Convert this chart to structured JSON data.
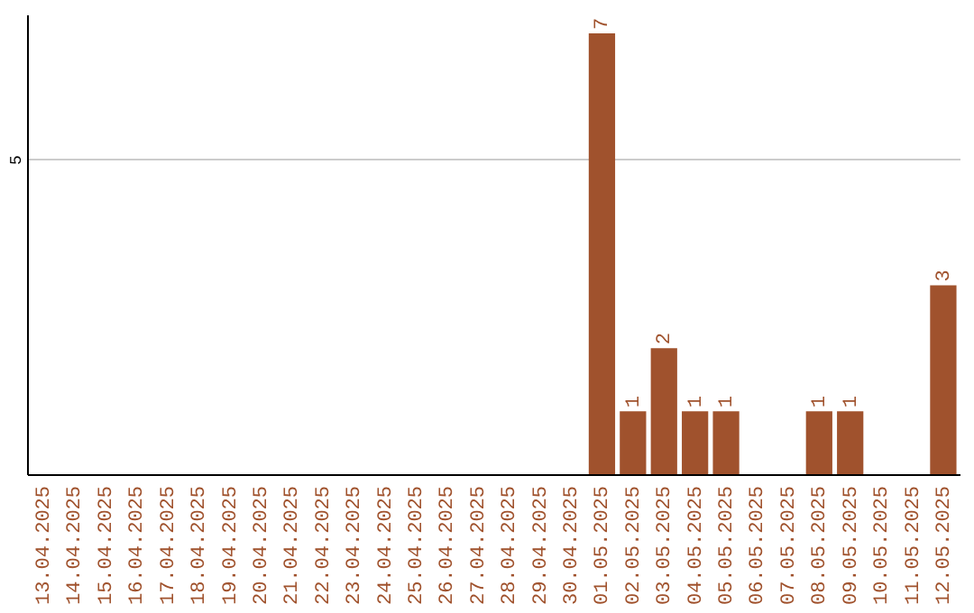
{
  "chart_data": {
    "type": "bar",
    "categories": [
      "13.04.2025",
      "14.04.2025",
      "15.04.2025",
      "16.04.2025",
      "17.04.2025",
      "18.04.2025",
      "19.04.2025",
      "20.04.2025",
      "21.04.2025",
      "22.04.2025",
      "23.04.2025",
      "24.04.2025",
      "25.04.2025",
      "26.04.2025",
      "27.04.2025",
      "28.04.2025",
      "29.04.2025",
      "30.04.2025",
      "01.05.2025",
      "02.05.2025",
      "03.05.2025",
      "04.05.2025",
      "05.05.2025",
      "06.05.2025",
      "07.05.2025",
      "08.05.2025",
      "09.05.2025",
      "10.05.2025",
      "11.05.2025",
      "12.05.2025"
    ],
    "values": [
      null,
      null,
      null,
      null,
      null,
      null,
      null,
      null,
      null,
      null,
      null,
      null,
      null,
      null,
      null,
      null,
      null,
      null,
      7,
      1,
      2,
      1,
      1,
      null,
      null,
      1,
      1,
      null,
      null,
      3
    ],
    "data_labels": true,
    "color": "#a0522d",
    "ylim": [
      0,
      7.3
    ],
    "yticks": [
      {
        "value": 0,
        "label": null
      },
      5
    ],
    "grid": "y"
  }
}
